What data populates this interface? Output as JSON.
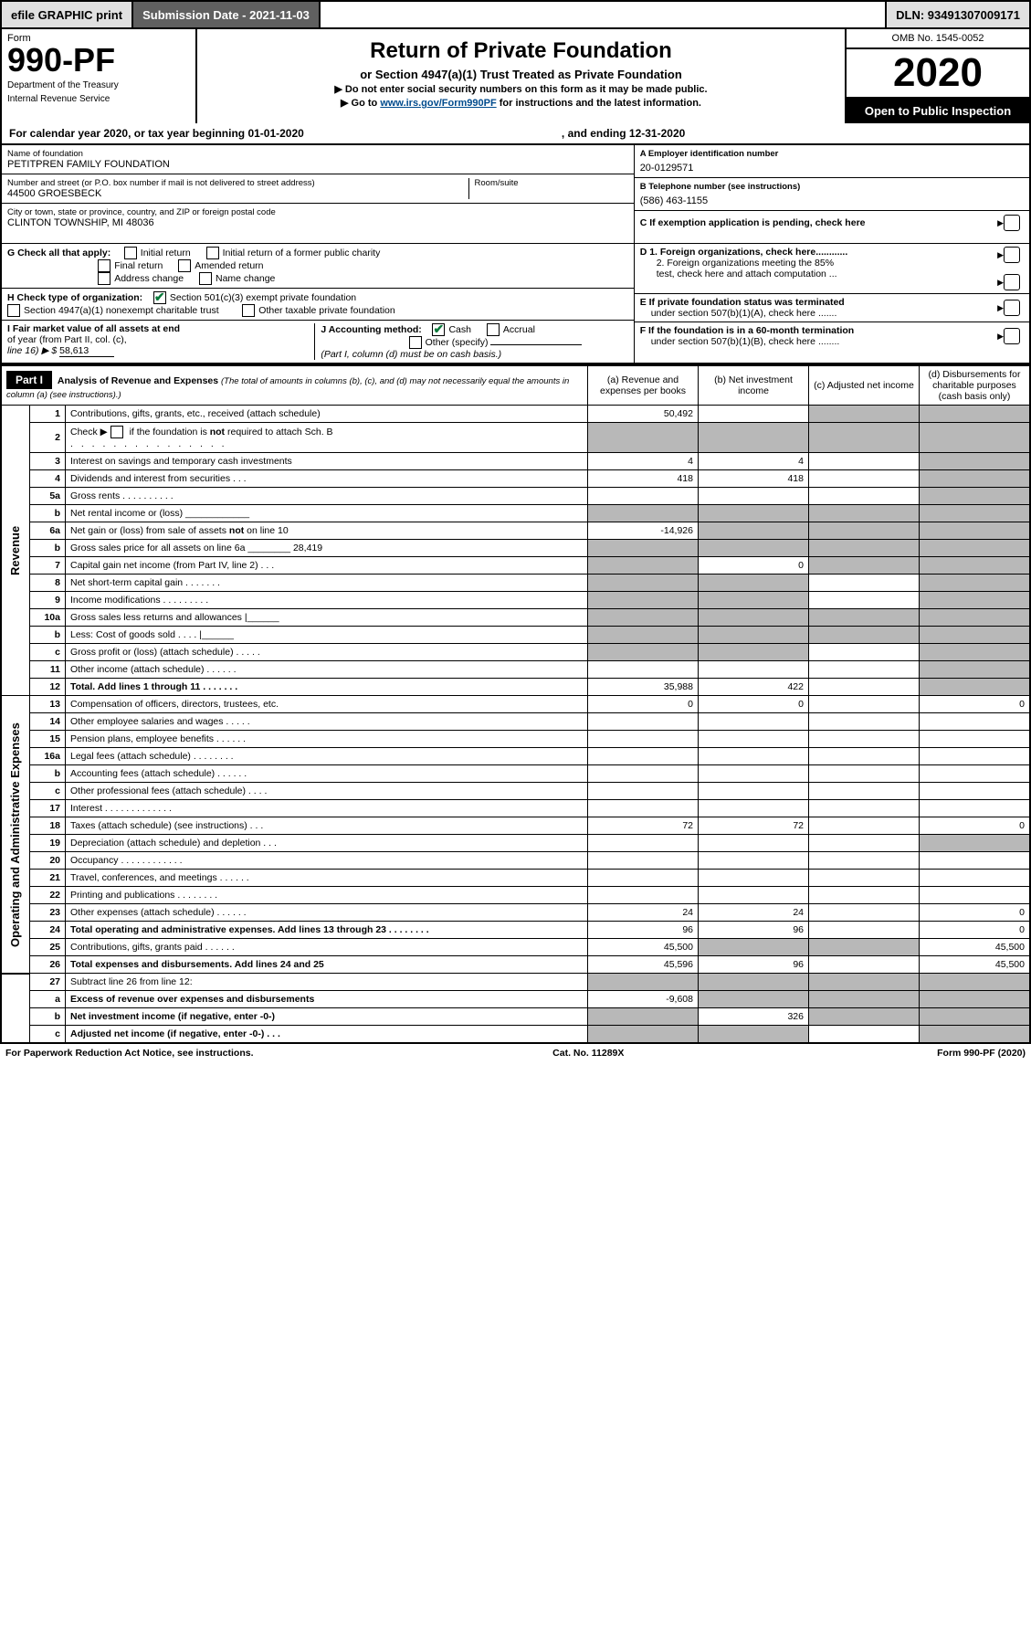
{
  "topbar": {
    "efile": "efile GRAPHIC print",
    "submission": "Submission Date - 2021-11-03",
    "dln": "DLN: 93491307009171"
  },
  "header": {
    "form_label": "Form",
    "form_no": "990-PF",
    "dept1": "Department of the Treasury",
    "dept2": "Internal Revenue Service",
    "title": "Return of Private Foundation",
    "sub": "or Section 4947(a)(1) Trust Treated as Private Foundation",
    "note1": "▶ Do not enter social security numbers on this form as it may be made public.",
    "note2_pre": "▶ Go to ",
    "note2_link": "www.irs.gov/Form990PF",
    "note2_post": " for instructions and the latest information.",
    "omb": "OMB No. 1545-0052",
    "year": "2020",
    "open": "Open to Public Inspection"
  },
  "cal": {
    "left": "For calendar year 2020, or tax year beginning 01-01-2020",
    "right": ", and ending 12-31-2020"
  },
  "entity": {
    "name_lbl": "Name of foundation",
    "name": "PETITPREN FAMILY FOUNDATION",
    "addr_lbl": "Number and street (or P.O. box number if mail is not delivered to street address)",
    "addr": "44500 GROESBECK",
    "room_lbl": "Room/suite",
    "city_lbl": "City or town, state or province, country, and ZIP or foreign postal code",
    "city": "CLINTON TOWNSHIP, MI  48036",
    "ein_lbl": "A Employer identification number",
    "ein": "20-0129571",
    "phone_lbl": "B Telephone number (see instructions)",
    "phone": "(586) 463-1155",
    "c_lbl": "C If exemption application is pending, check here"
  },
  "checks": {
    "g_lbl": "G Check all that apply:",
    "g_initial": "Initial return",
    "g_initial_former": "Initial return of a former public charity",
    "g_final": "Final return",
    "g_amended": "Amended return",
    "g_addr": "Address change",
    "g_name": "Name change",
    "h_lbl": "H Check type of organization:",
    "h_501": "Section 501(c)(3) exempt private foundation",
    "h_4947": "Section 4947(a)(1) nonexempt charitable trust",
    "h_other": "Other taxable private foundation",
    "i_lbl1": "I Fair market value of all assets at end",
    "i_lbl2": "of year (from Part II, col. (c),",
    "i_lbl3": "line 16) ▶ $",
    "i_val": "58,613",
    "j_lbl": "J Accounting method:",
    "j_cash": "Cash",
    "j_accrual": "Accrual",
    "j_other": "Other (specify)",
    "j_note": "(Part I, column (d) must be on cash basis.)",
    "d1": "D 1. Foreign organizations, check here............",
    "d2a": "2. Foreign organizations meeting the 85%",
    "d2b": "test, check here and attach computation ...",
    "e1": "E  If private foundation status was terminated",
    "e2": "under section 507(b)(1)(A), check here .......",
    "f1": "F  If the foundation is in a 60-month termination",
    "f2": "under section 507(b)(1)(B), check here ........"
  },
  "part1": {
    "label": "Part I",
    "title1": "Analysis of Revenue and Expenses",
    "title2": "(The total of amounts in columns (b), (c), and (d) may not necessarily equal the amounts in column (a) (see instructions).)",
    "col_a": "(a)    Revenue and expenses per books",
    "col_b": "(b)   Net investment income",
    "col_c": "(c)  Adjusted net income",
    "col_d": "(d)  Disbursements for charitable purposes (cash basis only)",
    "rot_rev": "Revenue",
    "rot_exp": "Operating and Administrative Expenses",
    "rows": [
      {
        "n": "1",
        "d": "Contributions, gifts, grants, etc., received (attach schedule)",
        "a": "50,492",
        "b": "",
        "c": "g",
        "dd": "g"
      },
      {
        "n": "2",
        "d": "Check ▶ ☐ if the foundation is not required to attach Sch. B",
        "extra_dots": true,
        "a": "g",
        "b": "g",
        "c": "g",
        "dd": "g"
      },
      {
        "n": "3",
        "d": "Interest on savings and temporary cash investments",
        "a": "4",
        "b": "4",
        "c": "",
        "dd": "g"
      },
      {
        "n": "4",
        "d": "Dividends and interest from securities   .   .   .",
        "a": "418",
        "b": "418",
        "c": "",
        "dd": "g"
      },
      {
        "n": "5a",
        "d": "Gross rents   .   .   .   .   .   .   .   .   .   .",
        "a": "",
        "b": "",
        "c": "",
        "dd": "g"
      },
      {
        "n": "b",
        "d": "Net rental income or (loss)   ____________",
        "a": "g",
        "b": "g",
        "c": "g",
        "dd": "g"
      },
      {
        "n": "6a",
        "d": "Net gain or (loss) from sale of assets not on line 10",
        "a": "-14,926",
        "b": "g",
        "c": "g",
        "dd": "g"
      },
      {
        "n": "b",
        "d": "Gross sales price for all assets on line 6a ________ 28,419",
        "u": true,
        "a": "g",
        "b": "g",
        "c": "g",
        "dd": "g"
      },
      {
        "n": "7",
        "d": "Capital gain net income (from Part IV, line 2)   .   .   .",
        "a": "g",
        "b": "0",
        "c": "g",
        "dd": "g"
      },
      {
        "n": "8",
        "d": "Net short-term capital gain   .   .   .   .   .   .   .",
        "a": "g",
        "b": "g",
        "c": "",
        "dd": "g"
      },
      {
        "n": "9",
        "d": "Income modifications   .   .   .   .   .   .   .   .   .",
        "a": "g",
        "b": "g",
        "c": "",
        "dd": "g"
      },
      {
        "n": "10a",
        "d": "Gross sales less returns and allowances  |______",
        "a": "g",
        "b": "g",
        "c": "g",
        "dd": "g"
      },
      {
        "n": "b",
        "d": "Less: Cost of goods sold   .   .   .   .  |______",
        "a": "g",
        "b": "g",
        "c": "g",
        "dd": "g"
      },
      {
        "n": "c",
        "d": "Gross profit or (loss) (attach schedule)   .   .   .   .   .",
        "a": "g",
        "b": "g",
        "c": "",
        "dd": "g"
      },
      {
        "n": "11",
        "d": "Other income (attach schedule)   .   .   .   .   .   .",
        "a": "",
        "b": "",
        "c": "",
        "dd": "g"
      },
      {
        "n": "12",
        "d": "Total. Add lines 1 through 11   .   .   .   .   .   .   .",
        "bold": true,
        "a": "35,988",
        "b": "422",
        "c": "",
        "dd": "g"
      }
    ],
    "exp_rows": [
      {
        "n": "13",
        "d": "Compensation of officers, directors, trustees, etc.",
        "a": "0",
        "b": "0",
        "c": "",
        "dd": "0"
      },
      {
        "n": "14",
        "d": "Other employee salaries and wages   .   .   .   .   .",
        "a": "",
        "b": "",
        "c": "",
        "dd": ""
      },
      {
        "n": "15",
        "d": "Pension plans, employee benefits   .   .   .   .   .   .",
        "a": "",
        "b": "",
        "c": "",
        "dd": ""
      },
      {
        "n": "16a",
        "d": "Legal fees (attach schedule)   .   .   .   .   .   .   .   .",
        "a": "",
        "b": "",
        "c": "",
        "dd": ""
      },
      {
        "n": "b",
        "d": "Accounting fees (attach schedule)   .   .   .   .   .   .",
        "a": "",
        "b": "",
        "c": "",
        "dd": ""
      },
      {
        "n": "c",
        "d": "Other professional fees (attach schedule)   .   .   .   .",
        "a": "",
        "b": "",
        "c": "",
        "dd": ""
      },
      {
        "n": "17",
        "d": "Interest   .   .   .   .   .   .   .   .   .   .   .   .   .",
        "a": "",
        "b": "",
        "c": "",
        "dd": ""
      },
      {
        "n": "18",
        "d": "Taxes (attach schedule) (see instructions)   .   .   .",
        "a": "72",
        "b": "72",
        "c": "",
        "dd": "0"
      },
      {
        "n": "19",
        "d": "Depreciation (attach schedule) and depletion   .   .   .",
        "a": "",
        "b": "",
        "c": "",
        "dd": "g"
      },
      {
        "n": "20",
        "d": "Occupancy   .   .   .   .   .   .   .   .   .   .   .   .",
        "a": "",
        "b": "",
        "c": "",
        "dd": ""
      },
      {
        "n": "21",
        "d": "Travel, conferences, and meetings   .   .   .   .   .   .",
        "a": "",
        "b": "",
        "c": "",
        "dd": ""
      },
      {
        "n": "22",
        "d": "Printing and publications   .   .   .   .   .   .   .   .",
        "a": "",
        "b": "",
        "c": "",
        "dd": ""
      },
      {
        "n": "23",
        "d": "Other expenses (attach schedule)   .   .   .   .   .   .",
        "a": "24",
        "b": "24",
        "c": "",
        "dd": "0"
      },
      {
        "n": "24",
        "d": "Total operating and administrative expenses. Add lines 13 through 23   .   .   .   .   .   .   .   .",
        "bold": true,
        "a": "96",
        "b": "96",
        "c": "",
        "dd": "0"
      },
      {
        "n": "25",
        "d": "Contributions, gifts, grants paid   .   .   .   .   .   .",
        "a": "45,500",
        "b": "g",
        "c": "g",
        "dd": "45,500"
      },
      {
        "n": "26",
        "d": "Total expenses and disbursements. Add lines 24 and 25",
        "bold": true,
        "a": "45,596",
        "b": "96",
        "c": "",
        "dd": "45,500"
      },
      {
        "n": "27",
        "d": "Subtract line 26 from line 12:",
        "a": "g",
        "b": "g",
        "c": "g",
        "dd": "g",
        "noside": true
      },
      {
        "n": "a",
        "d": "Excess of revenue over expenses and disbursements",
        "bold": true,
        "a": "-9,608",
        "b": "g",
        "c": "g",
        "dd": "g",
        "noside": true
      },
      {
        "n": "b",
        "d": "Net investment income (if negative, enter -0-)",
        "bold": true,
        "a": "g",
        "b": "326",
        "c": "g",
        "dd": "g",
        "noside": true
      },
      {
        "n": "c",
        "d": "Adjusted net income (if negative, enter -0-)   .   .   .",
        "bold": true,
        "a": "g",
        "b": "g",
        "c": "",
        "dd": "g",
        "noside": true
      }
    ]
  },
  "footer": {
    "l": "For Paperwork Reduction Act Notice, see instructions.",
    "c": "Cat. No. 11289X",
    "r": "Form 990-PF (2020)"
  }
}
